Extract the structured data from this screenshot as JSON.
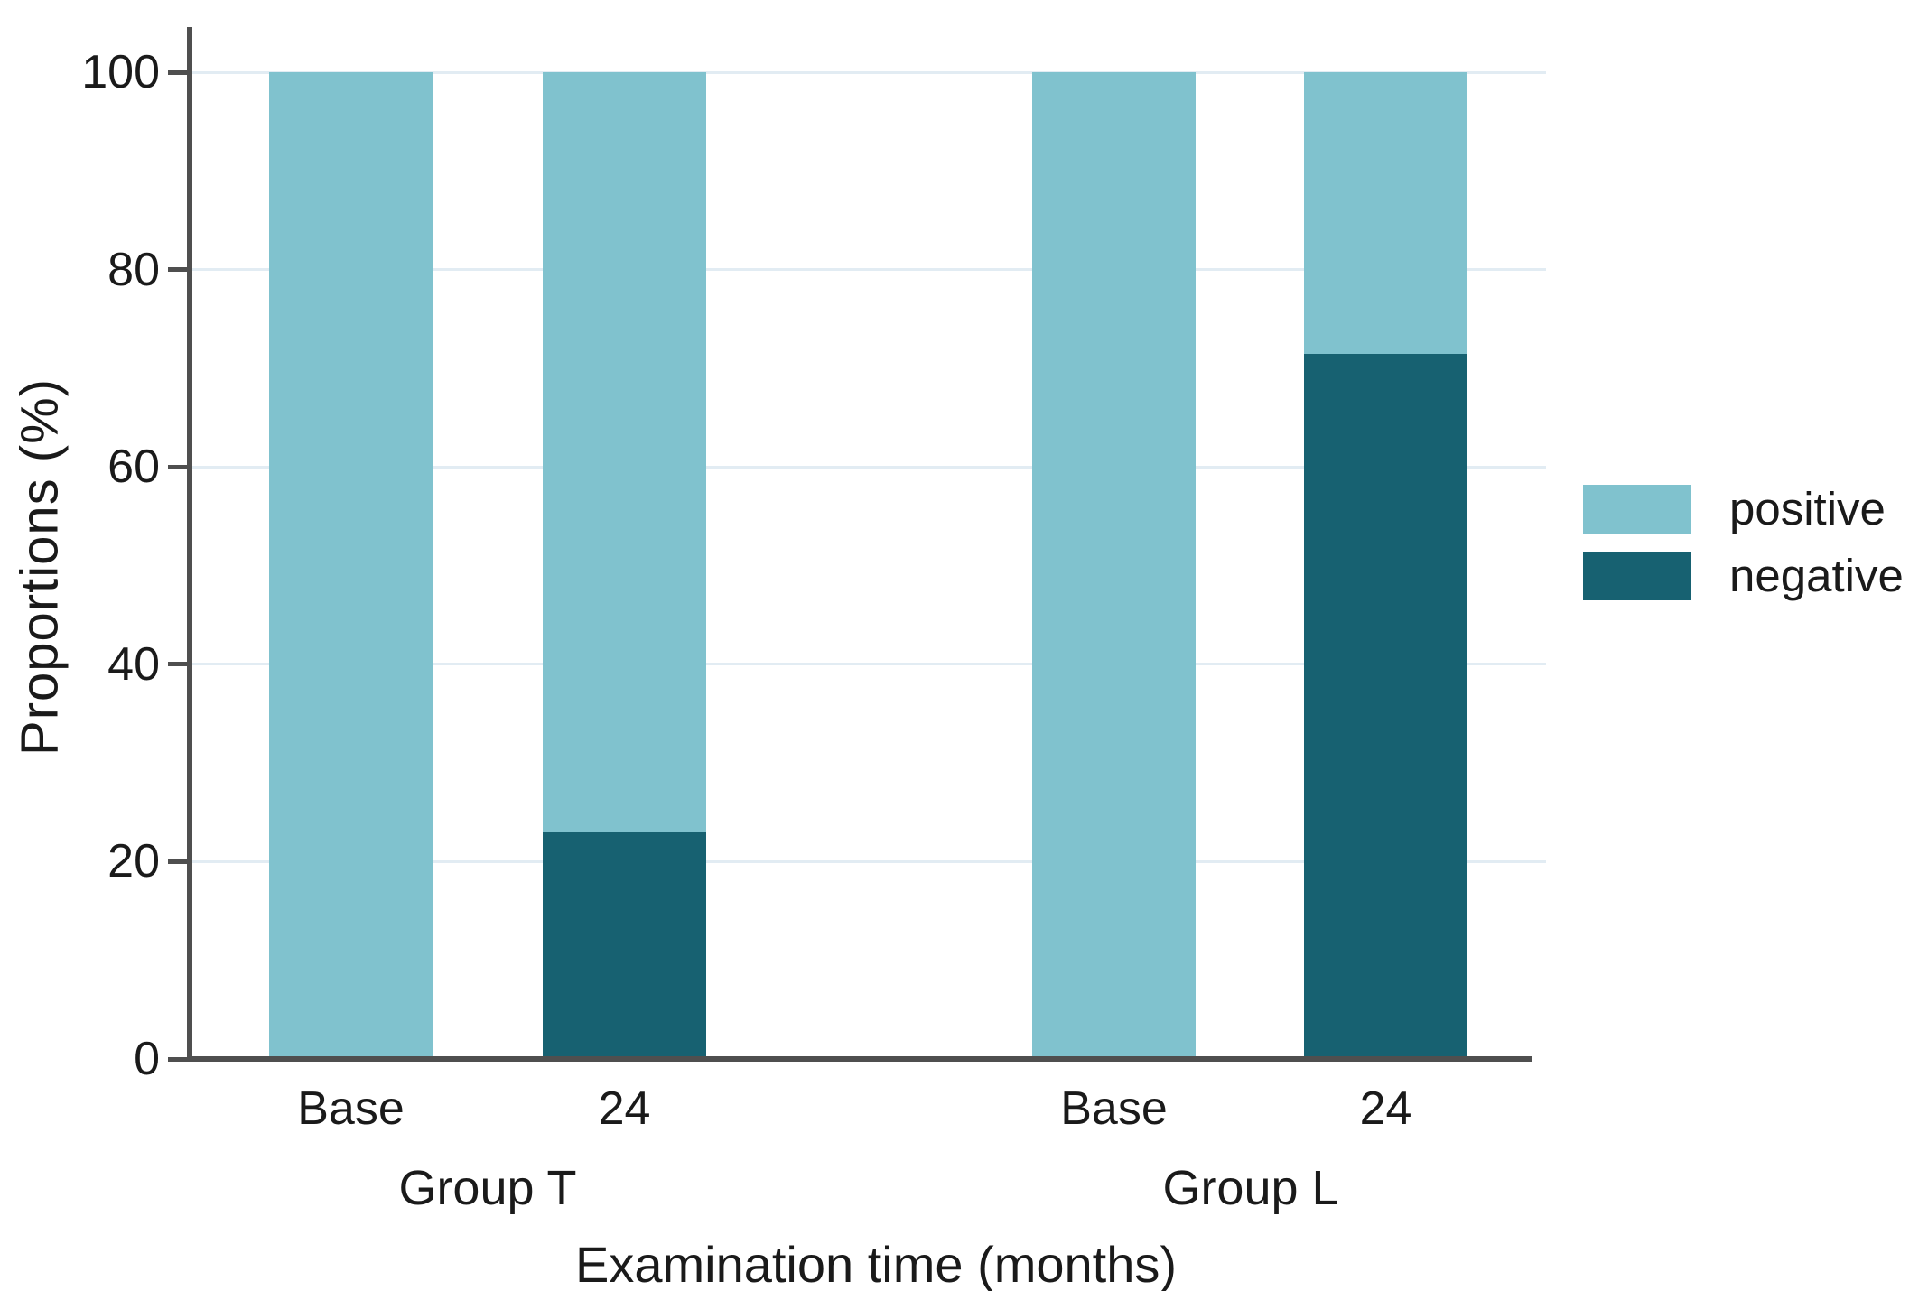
{
  "chart_data": {
    "type": "bar",
    "subtype": "stacked_percentage_bar",
    "title": "",
    "ylabel": "Proportions (%)",
    "xlabel": "Examination time (months)",
    "ylim": [
      0,
      100
    ],
    "yticks": [
      0,
      20,
      40,
      60,
      80,
      100
    ],
    "grid": "horizontal",
    "legend_position": "right",
    "groups": [
      {
        "label": "Group T",
        "bars": [
          {
            "category": "Base",
            "positive": 100,
            "negative": 0
          },
          {
            "category": "24",
            "positive": 77,
            "negative": 23
          }
        ]
      },
      {
        "label": "Group L",
        "bars": [
          {
            "category": "Base",
            "positive": 100,
            "negative": 0
          },
          {
            "category": "24",
            "positive": 28.5,
            "negative": 71.5
          }
        ]
      }
    ],
    "series_stack_order_bottom_to_top": [
      "negative",
      "positive"
    ],
    "legend": [
      {
        "label": "positive",
        "color": "#80c2ce"
      },
      {
        "label": "negative",
        "color": "#176171"
      }
    ],
    "colors": {
      "positive": "#80c2ce",
      "negative": "#176171",
      "axis_line": "#4f4f4f",
      "gridline": "#e2ecf3",
      "text": "#1a1a1a",
      "background": "#ffffff"
    }
  }
}
